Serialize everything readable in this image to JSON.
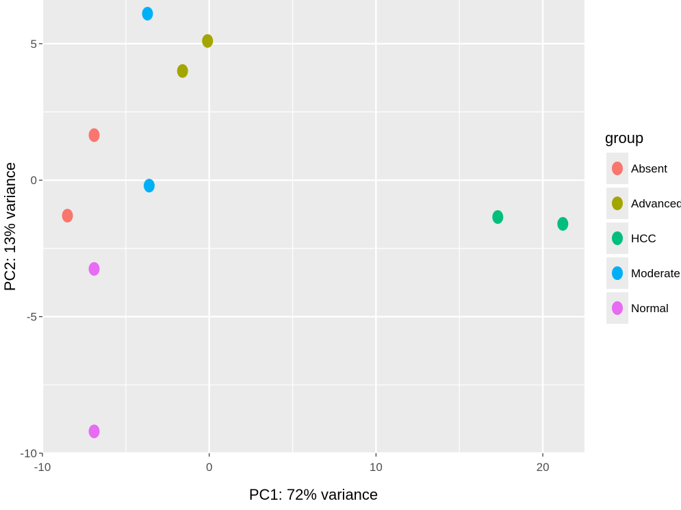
{
  "chart_data": {
    "type": "scatter",
    "title": "",
    "xlabel": "PC1: 72% variance",
    "ylabel": "PC2: 13% variance",
    "xlim": [
      -10,
      22.5
    ],
    "ylim": [
      -10,
      6.6
    ],
    "x_ticks": [
      -10,
      0,
      10,
      20
    ],
    "y_ticks": [
      -10,
      -5,
      0,
      5
    ],
    "x_tick_labels": [
      "-10",
      "0",
      "10",
      "20"
    ],
    "y_tick_labels": [
      "-10",
      "-5",
      "0",
      "5"
    ],
    "grid": true,
    "legend": {
      "title": "group",
      "position": "right"
    },
    "series": [
      {
        "name": "Absent",
        "color": "#F8766D",
        "points": [
          {
            "x": -6.9,
            "y": 1.65
          },
          {
            "x": -8.5,
            "y": -1.3
          }
        ]
      },
      {
        "name": "Advanced",
        "color": "#A3A500",
        "points": [
          {
            "x": -0.1,
            "y": 5.1
          },
          {
            "x": -1.6,
            "y": 4.0
          }
        ]
      },
      {
        "name": "HCC",
        "color": "#00BF7D",
        "points": [
          {
            "x": 17.3,
            "y": -1.35
          },
          {
            "x": 21.2,
            "y": -1.6
          }
        ]
      },
      {
        "name": "Moderate",
        "color": "#00B0F6",
        "points": [
          {
            "x": -3.7,
            "y": 6.1
          },
          {
            "x": -3.6,
            "y": -0.2
          }
        ]
      },
      {
        "name": "Normal",
        "color": "#E76BF3",
        "points": [
          {
            "x": -6.9,
            "y": -3.25
          },
          {
            "x": -6.9,
            "y": -9.2
          }
        ]
      }
    ]
  }
}
